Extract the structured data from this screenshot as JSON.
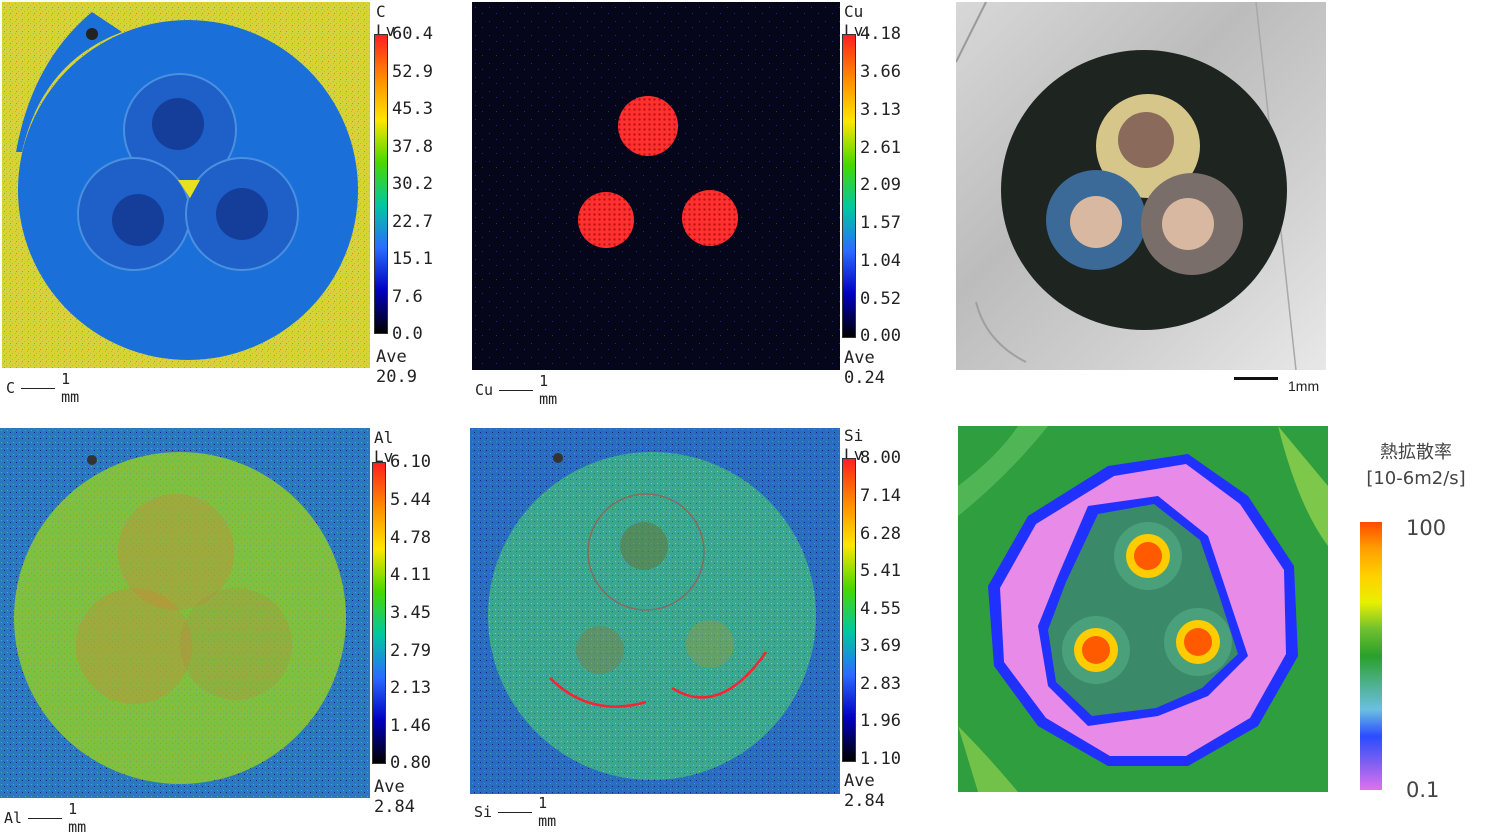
{
  "maps": {
    "c": {
      "title": "C Lv.",
      "ticks": [
        "60.4",
        "52.9",
        "45.3",
        "37.8",
        "30.2",
        "22.7",
        "15.1",
        "7.6",
        "0.0"
      ],
      "ave": "Ave 20.9",
      "scale_element": "C",
      "scale_length": "1 mm"
    },
    "cu": {
      "title": "Cu Lv.",
      "ticks": [
        "4.18",
        "3.66",
        "3.13",
        "2.61",
        "2.09",
        "1.57",
        "1.04",
        "0.52",
        "0.00"
      ],
      "ave": "Ave 0.24",
      "scale_element": "Cu",
      "scale_length": "1 mm"
    },
    "al": {
      "title": "Al Lv.",
      "ticks": [
        "6.10",
        "5.44",
        "4.78",
        "4.11",
        "3.45",
        "2.79",
        "2.13",
        "1.46",
        "0.80"
      ],
      "ave": "Ave 2.84",
      "scale_element": "Al",
      "scale_length": "1 mm"
    },
    "si": {
      "title": "Si Lv.",
      "ticks": [
        "8.00",
        "7.14",
        "6.28",
        "5.41",
        "4.55",
        "3.69",
        "2.83",
        "1.96",
        "1.10"
      ],
      "ave": "Ave 2.84",
      "scale_element": "Si",
      "scale_length": "1 mm"
    }
  },
  "photo": {
    "scale_label": "1mm"
  },
  "thermal": {
    "title_line1": "熱拡散率",
    "title_line2": "[10-6m2/s]",
    "max_label": "100",
    "min_label": "0.1"
  },
  "colors": {
    "element_colorbar": [
      "#ff2020",
      "#ff8a00",
      "#ffe600",
      "#48d800",
      "#00c8a0",
      "#2a6cff",
      "#0000c0",
      "#000000"
    ],
    "thermal_colorbar": [
      "#ff4a00",
      "#ffd000",
      "#e8f000",
      "#2aa02a",
      "#4cb08a",
      "#6ac0e0",
      "#2a4cff",
      "#e070f0"
    ]
  }
}
